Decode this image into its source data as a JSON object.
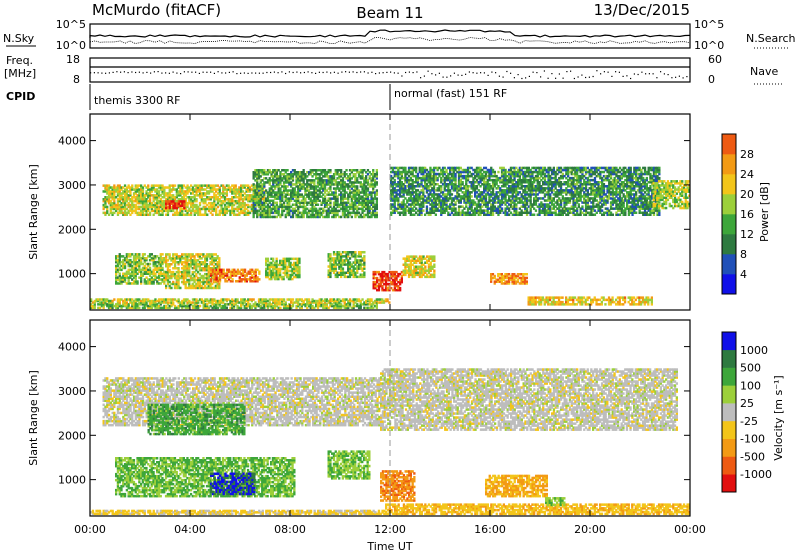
{
  "header": {
    "station": "McMurdo (fitACF)",
    "beam": "Beam 11",
    "date": "13/Dec/2015"
  },
  "meta_panels": {
    "nsky_label": "N.Sky",
    "nsearch_label": "N.Search",
    "freq_label_1": "Freq.",
    "freq_label_2": "[MHz]",
    "nave_label": "Nave",
    "cpid_label": "CPID",
    "noise_left_ticks": [
      "10^5",
      "10^0"
    ],
    "noise_right_ticks": [
      "10^5",
      "10^0"
    ],
    "freq_left_ticks": [
      "18",
      "8"
    ],
    "freq_right_ticks": [
      "60",
      "0"
    ],
    "cpid_segments": [
      {
        "label": "themis 3300 RF"
      },
      {
        "label": "normal (fast) 151 RF"
      }
    ]
  },
  "x_axis": {
    "label": "Time UT",
    "ticks": [
      "00:00",
      "04:00",
      "08:00",
      "12:00",
      "16:00",
      "20:00",
      "00:00"
    ]
  },
  "colors": {
    "scale": [
      "#1010e8",
      "#2050b8",
      "#2e7a40",
      "#3da63a",
      "#9ccf3a",
      "#f3c51a",
      "#f39a14",
      "#ee5a12",
      "#e20f0f"
    ],
    "ground_scatter": "#bdbdbd"
  },
  "chart_data": [
    {
      "type": "heatmap",
      "title": "",
      "xlabel": "",
      "ylabel": "Slant Range [km]",
      "xlim": [
        0,
        24
      ],
      "ylim": [
        180,
        4600
      ],
      "yticks": [
        "1000",
        "2000",
        "3000",
        "4000"
      ],
      "colorbar": {
        "label": "Power [dB]",
        "ticks": [
          "4",
          "8",
          "12",
          "16",
          "20",
          "24",
          "28"
        ],
        "range": [
          0,
          30
        ]
      },
      "regions": [
        {
          "t": [
            0,
            11.5
          ],
          "r": [
            200,
            320
          ],
          "level": 0.45
        },
        {
          "t": [
            0,
            12
          ],
          "r": [
            320,
            420
          ],
          "level": 0.55
        },
        {
          "t": [
            1.0,
            3.0
          ],
          "r": [
            750,
            1450
          ],
          "level": 0.45
        },
        {
          "t": [
            3.0,
            5.2
          ],
          "r": [
            650,
            1450
          ],
          "level": 0.55
        },
        {
          "t": [
            4.8,
            6.8
          ],
          "r": [
            800,
            1100
          ],
          "level": 0.8
        },
        {
          "t": [
            7.0,
            8.4
          ],
          "r": [
            850,
            1350
          ],
          "level": 0.5
        },
        {
          "t": [
            9.5,
            11.0
          ],
          "r": [
            900,
            1500
          ],
          "level": 0.45
        },
        {
          "t": [
            11.3,
            12.5
          ],
          "r": [
            600,
            1050
          ],
          "level": 0.95
        },
        {
          "t": [
            12.5,
            13.8
          ],
          "r": [
            900,
            1400
          ],
          "level": 0.6
        },
        {
          "t": [
            16.0,
            17.5
          ],
          "r": [
            750,
            1000
          ],
          "level": 0.75
        },
        {
          "t": [
            17.5,
            22.5
          ],
          "r": [
            280,
            480
          ],
          "level": 0.65
        },
        {
          "t": [
            0.5,
            7.0
          ],
          "r": [
            2300,
            3000
          ],
          "level": 0.55
        },
        {
          "t": [
            3.0,
            3.8
          ],
          "r": [
            2450,
            2650
          ],
          "level": 1.0
        },
        {
          "t": [
            6.5,
            11.5
          ],
          "r": [
            2250,
            3350
          ],
          "level": 0.35
        },
        {
          "t": [
            12.0,
            22.8
          ],
          "r": [
            2300,
            3400
          ],
          "level": 0.3
        },
        {
          "t": [
            22.5,
            24.0
          ],
          "r": [
            2450,
            3100
          ],
          "level": 0.5
        }
      ]
    },
    {
      "type": "heatmap",
      "title": "",
      "xlabel": "Time UT",
      "ylabel": "Slant Range [km]",
      "xlim": [
        0,
        24
      ],
      "ylim": [
        180,
        4600
      ],
      "yticks": [
        "1000",
        "2000",
        "3000",
        "4000"
      ],
      "colorbar": {
        "label": "Velocity [m s⁻¹]",
        "ticks": [
          "1000",
          "500",
          "100",
          "25",
          "-25",
          "-100",
          "-500",
          "-1000"
        ],
        "range": [
          -1000,
          1000
        ]
      },
      "regions": [
        {
          "t": [
            0,
            11.8
          ],
          "r": [
            200,
            300
          ],
          "level": -0.2
        },
        {
          "t": [
            11.8,
            24
          ],
          "r": [
            200,
            450
          ],
          "level": -0.3
        },
        {
          "t": [
            1.0,
            8.2
          ],
          "r": [
            600,
            1500
          ],
          "level": 0.4
        },
        {
          "t": [
            4.8,
            6.6
          ],
          "r": [
            650,
            1150
          ],
          "level": 0.9
        },
        {
          "t": [
            9.5,
            11.2
          ],
          "r": [
            1000,
            1650
          ],
          "level": 0.35
        },
        {
          "t": [
            11.6,
            13.0
          ],
          "r": [
            500,
            1200
          ],
          "level": -0.55
        },
        {
          "t": [
            15.8,
            18.3
          ],
          "r": [
            600,
            1100
          ],
          "level": -0.4
        },
        {
          "t": [
            18.2,
            19.0
          ],
          "r": [
            400,
            600
          ],
          "level": 0.3
        },
        {
          "t": [
            0.5,
            11.6
          ],
          "r": [
            2200,
            3300
          ],
          "level": 0.0
        },
        {
          "t": [
            2.3,
            6.2
          ],
          "r": [
            2000,
            2700
          ],
          "level": 0.5
        },
        {
          "t": [
            11.6,
            23.5
          ],
          "r": [
            2100,
            3500
          ],
          "level": 0.0
        }
      ]
    }
  ]
}
